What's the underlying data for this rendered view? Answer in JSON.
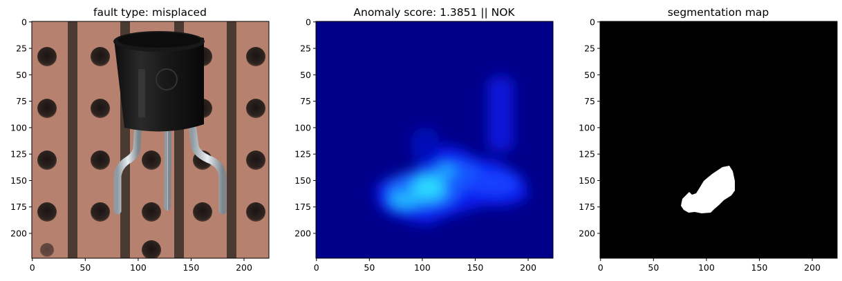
{
  "chart_data": [
    {
      "type": "image",
      "title": "fault type: misplaced",
      "content": "transistor photo on perforated copper board",
      "x_ticks": [
        0,
        50,
        100,
        150,
        200
      ],
      "y_ticks": [
        0,
        25,
        50,
        75,
        100,
        125,
        150,
        175,
        200
      ],
      "xlim": [
        0,
        224
      ],
      "ylim": [
        224,
        0
      ]
    },
    {
      "type": "heatmap",
      "title": "Anomaly score: 1.3851 || NOK",
      "colormap": "jet",
      "x_ticks": [
        0,
        50,
        100,
        150,
        200
      ],
      "y_ticks": [
        0,
        25,
        50,
        75,
        100,
        125,
        150,
        175,
        200
      ],
      "xlim": [
        0,
        224
      ],
      "ylim": [
        224,
        0
      ],
      "hotspots": [
        {
          "x": 105,
          "y": 165,
          "intensity": 0.95
        },
        {
          "x": 80,
          "y": 170,
          "intensity": 0.75
        },
        {
          "x": 125,
          "y": 145,
          "intensity": 0.65
        },
        {
          "x": 165,
          "y": 158,
          "intensity": 0.5
        },
        {
          "x": 175,
          "y": 90,
          "intensity": 0.45
        },
        {
          "x": 150,
          "y": 155,
          "intensity": 0.45
        }
      ]
    },
    {
      "type": "image",
      "title": "segmentation map",
      "content": "binary mask, white blob on black",
      "x_ticks": [
        0,
        50,
        100,
        150,
        200
      ],
      "y_ticks": [
        0,
        25,
        50,
        75,
        100,
        125,
        150,
        175,
        200
      ],
      "xlim": [
        0,
        224
      ],
      "ylim": [
        224,
        0
      ]
    }
  ]
}
